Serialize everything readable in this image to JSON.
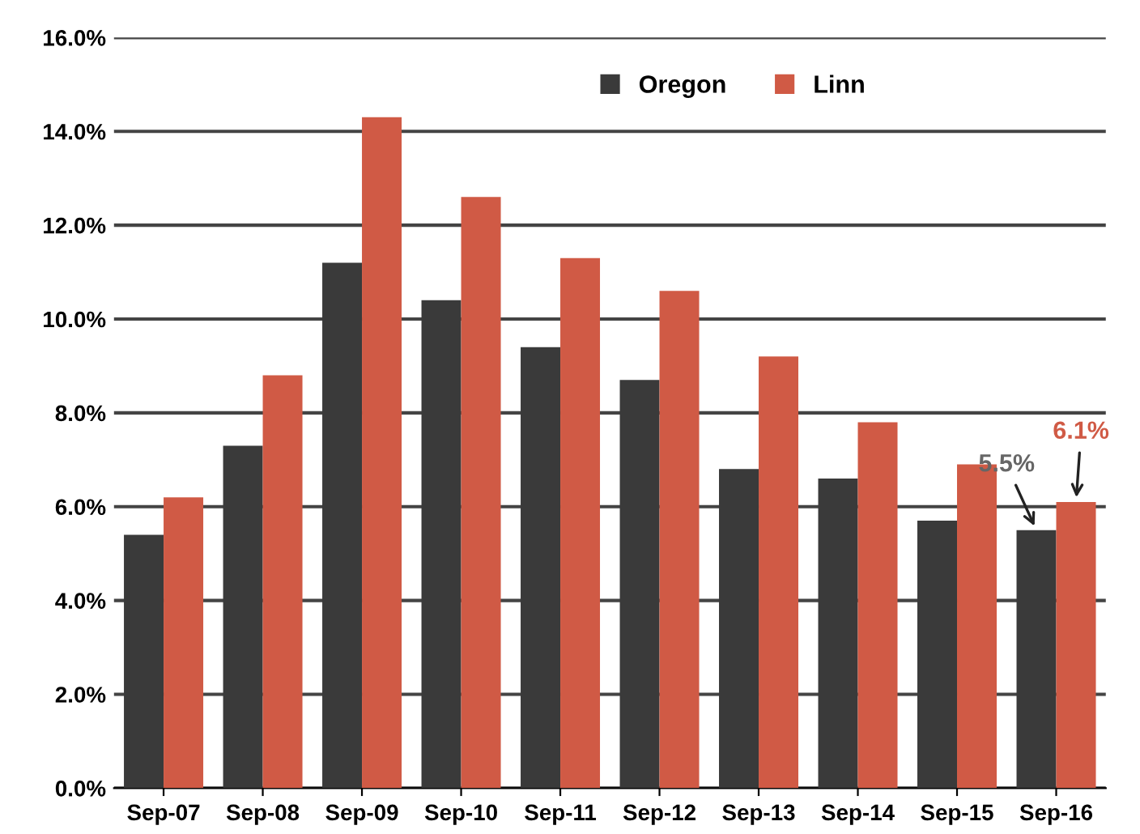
{
  "chart_data": {
    "type": "bar",
    "categories": [
      "Sep-07",
      "Sep-08",
      "Sep-09",
      "Sep-10",
      "Sep-11",
      "Sep-12",
      "Sep-13",
      "Sep-14",
      "Sep-15",
      "Sep-16"
    ],
    "series": [
      {
        "name": "Oregon",
        "color": "#3a3a3a",
        "values": [
          5.4,
          7.3,
          11.2,
          10.4,
          9.4,
          8.7,
          6.8,
          6.6,
          5.7,
          5.5
        ]
      },
      {
        "name": "Linn",
        "color": "#d05a45",
        "values": [
          6.2,
          8.8,
          14.3,
          12.6,
          11.3,
          10.6,
          9.2,
          7.8,
          6.9,
          6.1
        ]
      }
    ],
    "ylim": [
      0,
      16
    ],
    "yticks": [
      {
        "value": 0,
        "label": "0.0%"
      },
      {
        "value": 2,
        "label": "2.0%"
      },
      {
        "value": 4,
        "label": "4.0%"
      },
      {
        "value": 6,
        "label": "6.0%"
      },
      {
        "value": 8,
        "label": "8.0%"
      },
      {
        "value": 10,
        "label": "10.0%"
      },
      {
        "value": 12,
        "label": "12.0%"
      },
      {
        "value": 14,
        "label": "14.0%"
      },
      {
        "value": 16,
        "label": "16.0%"
      }
    ],
    "annotations": [
      {
        "text": "5.5%",
        "x": "Sep-16",
        "y": 5.5
      },
      {
        "text": "6.1%",
        "x": "Sep-16",
        "y": 6.1
      }
    ],
    "grid": "y",
    "legend": "top right"
  }
}
